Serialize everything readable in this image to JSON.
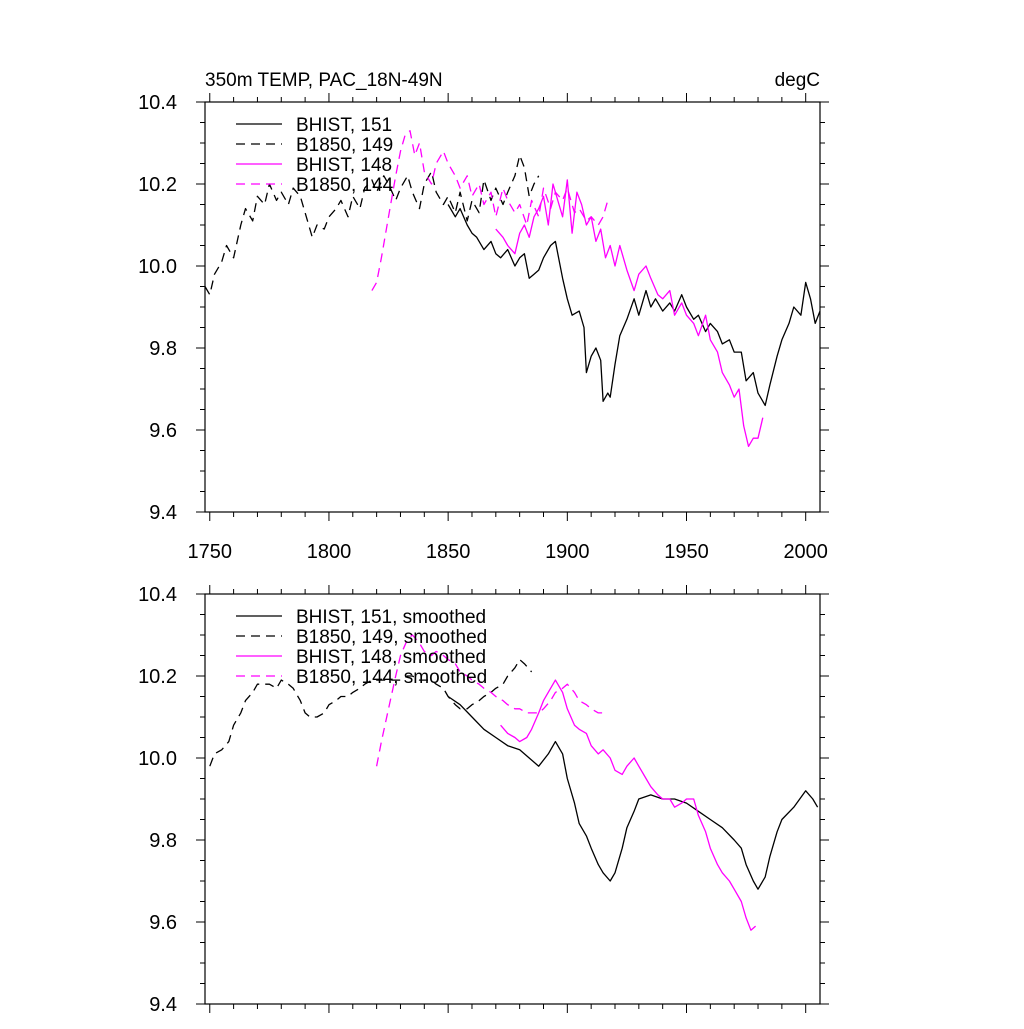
{
  "colors": {
    "black": "#000000",
    "magenta": "#ff00ff"
  },
  "chart_data": [
    {
      "type": "line",
      "title": "350m TEMP, PAC_18N-49N",
      "units": "degC",
      "xlim": [
        1748,
        2006
      ],
      "ylim": [
        9.4,
        10.4
      ],
      "xticks": [
        1750,
        1800,
        1850,
        1900,
        1950,
        2000
      ],
      "xtick_labels": [
        "1750",
        "1800",
        "1850",
        "1900",
        "1950",
        "2000"
      ],
      "yticks": [
        9.4,
        9.6,
        9.8,
        10.0,
        10.2,
        10.4
      ],
      "ytick_labels": [
        "9.4",
        "9.6",
        "9.8",
        "10.0",
        "10.2",
        "10.4"
      ],
      "grid": false,
      "legend": "top-left",
      "series": [
        {
          "name": "BHIST, 151",
          "color": "#000000",
          "dash": "solid",
          "x": [
            1850,
            1853,
            1855,
            1858,
            1860,
            1862,
            1865,
            1868,
            1870,
            1872,
            1875,
            1878,
            1880,
            1882,
            1884,
            1886,
            1888,
            1890,
            1893,
            1895,
            1898,
            1900,
            1902,
            1905,
            1907,
            1908,
            1910,
            1912,
            1914,
            1915,
            1917,
            1918,
            1920,
            1922,
            1925,
            1928,
            1930,
            1933,
            1935,
            1937,
            1940,
            1943,
            1945,
            1948,
            1950,
            1953,
            1955,
            1958,
            1960,
            1963,
            1965,
            1968,
            1970,
            1973,
            1975,
            1978,
            1980,
            1983,
            1985,
            1988,
            1990,
            1993,
            1995,
            1998,
            2000,
            2002,
            2004,
            2006
          ],
          "y": [
            10.15,
            10.12,
            10.14,
            10.1,
            10.08,
            10.07,
            10.04,
            10.06,
            10.03,
            10.02,
            10.04,
            10.0,
            10.02,
            10.03,
            9.97,
            9.98,
            9.99,
            10.02,
            10.05,
            10.06,
            9.97,
            9.92,
            9.88,
            9.89,
            9.85,
            9.74,
            9.78,
            9.8,
            9.77,
            9.67,
            9.69,
            9.68,
            9.76,
            9.83,
            9.87,
            9.92,
            9.88,
            9.94,
            9.9,
            9.92,
            9.89,
            9.91,
            9.89,
            9.93,
            9.9,
            9.87,
            9.88,
            9.84,
            9.86,
            9.84,
            9.81,
            9.82,
            9.79,
            9.79,
            9.72,
            9.74,
            9.69,
            9.66,
            9.71,
            9.78,
            9.82,
            9.86,
            9.9,
            9.88,
            9.96,
            9.92,
            9.86,
            9.89
          ]
        },
        {
          "name": "B1850, 149",
          "color": "#000000",
          "dash": "dashed",
          "x": [
            1748,
            1750,
            1752,
            1755,
            1757,
            1760,
            1763,
            1765,
            1768,
            1770,
            1773,
            1775,
            1778,
            1780,
            1783,
            1785,
            1788,
            1790,
            1793,
            1795,
            1798,
            1800,
            1803,
            1805,
            1808,
            1810,
            1813,
            1815,
            1818,
            1820,
            1823,
            1825,
            1828,
            1830,
            1833,
            1835,
            1838,
            1840,
            1843,
            1845,
            1848,
            1850,
            1853,
            1855,
            1858,
            1860,
            1863,
            1865,
            1868,
            1870,
            1873,
            1875,
            1878,
            1880,
            1882,
            1884,
            1886,
            1888
          ],
          "y": [
            9.95,
            9.93,
            9.98,
            10.01,
            10.05,
            10.02,
            10.1,
            10.14,
            10.11,
            10.17,
            10.15,
            10.2,
            10.16,
            10.18,
            10.15,
            10.19,
            10.17,
            10.13,
            10.07,
            10.1,
            10.09,
            10.12,
            10.14,
            10.16,
            10.12,
            10.17,
            10.14,
            10.19,
            10.21,
            10.18,
            10.22,
            10.2,
            10.16,
            10.19,
            10.22,
            10.18,
            10.14,
            10.2,
            10.23,
            10.18,
            10.15,
            10.17,
            10.13,
            10.18,
            10.11,
            10.16,
            10.13,
            10.21,
            10.16,
            10.19,
            10.15,
            10.18,
            10.22,
            10.27,
            10.24,
            10.17,
            10.2,
            10.22
          ]
        },
        {
          "name": "BHIST, 148",
          "color": "#ff00ff",
          "dash": "solid",
          "x": [
            1870,
            1873,
            1875,
            1878,
            1880,
            1882,
            1884,
            1886,
            1888,
            1890,
            1892,
            1894,
            1896,
            1898,
            1900,
            1902,
            1904,
            1906,
            1908,
            1910,
            1912,
            1914,
            1916,
            1918,
            1920,
            1922,
            1925,
            1928,
            1930,
            1933,
            1935,
            1938,
            1940,
            1943,
            1945,
            1948,
            1950,
            1953,
            1955,
            1958,
            1960,
            1963,
            1965,
            1968,
            1970,
            1972,
            1974,
            1976,
            1978,
            1980,
            1982
          ],
          "y": [
            10.09,
            10.07,
            10.05,
            10.03,
            10.08,
            10.1,
            10.07,
            10.12,
            10.14,
            10.17,
            10.1,
            10.2,
            10.16,
            10.12,
            10.21,
            10.08,
            10.18,
            10.15,
            10.1,
            10.12,
            10.06,
            10.09,
            10.02,
            10.05,
            10.0,
            10.05,
            9.99,
            9.94,
            9.98,
            10.0,
            9.97,
            9.93,
            9.92,
            9.94,
            9.88,
            9.91,
            9.88,
            9.86,
            9.83,
            9.88,
            9.82,
            9.79,
            9.74,
            9.71,
            9.68,
            9.7,
            9.61,
            9.56,
            9.58,
            9.58,
            9.63
          ]
        },
        {
          "name": "B1850, 144",
          "color": "#ff00ff",
          "dash": "dashed",
          "x": [
            1818,
            1820,
            1822,
            1825,
            1828,
            1830,
            1832,
            1834,
            1836,
            1838,
            1840,
            1843,
            1845,
            1848,
            1850,
            1853,
            1855,
            1858,
            1860,
            1863,
            1865,
            1868,
            1870,
            1873,
            1875,
            1878,
            1880,
            1883,
            1885,
            1888,
            1890,
            1893,
            1895,
            1898,
            1900,
            1903,
            1905,
            1908,
            1910,
            1913,
            1915,
            1917
          ],
          "y": [
            9.94,
            9.96,
            10.02,
            10.12,
            10.22,
            10.28,
            10.32,
            10.33,
            10.27,
            10.3,
            10.23,
            10.2,
            10.25,
            10.28,
            10.25,
            10.22,
            10.19,
            10.22,
            10.17,
            10.2,
            10.15,
            10.18,
            10.12,
            10.19,
            10.16,
            10.13,
            10.15,
            10.1,
            10.16,
            10.12,
            10.19,
            10.14,
            10.18,
            10.16,
            10.19,
            10.13,
            10.14,
            10.11,
            10.12,
            10.1,
            10.12,
            10.16
          ]
        }
      ]
    },
    {
      "type": "line",
      "title": "",
      "xlim": [
        1748,
        2006
      ],
      "ylim": [
        9.4,
        10.4
      ],
      "xticks": [
        1750,
        1800,
        1850,
        1900,
        1950,
        2000
      ],
      "yticks": [
        9.4,
        9.6,
        9.8,
        10.0,
        10.2,
        10.4
      ],
      "ytick_labels": [
        "9.4",
        "9.6",
        "9.8",
        "10.0",
        "10.2",
        "10.4"
      ],
      "grid": false,
      "legend": "top-left",
      "series": [
        {
          "name": "BHIST, 151, smoothed",
          "color": "#000000",
          "dash": "solid",
          "x": [
            1850,
            1855,
            1860,
            1865,
            1870,
            1875,
            1880,
            1884,
            1888,
            1892,
            1895,
            1898,
            1900,
            1903,
            1905,
            1908,
            1910,
            1913,
            1915,
            1918,
            1920,
            1923,
            1925,
            1928,
            1930,
            1935,
            1940,
            1945,
            1950,
            1955,
            1960,
            1965,
            1970,
            1973,
            1975,
            1978,
            1980,
            1983,
            1985,
            1988,
            1990,
            1995,
            2000,
            2003,
            2005
          ],
          "y": [
            10.15,
            10.13,
            10.1,
            10.07,
            10.05,
            10.03,
            10.02,
            10.0,
            9.98,
            10.01,
            10.04,
            10.01,
            9.95,
            9.89,
            9.84,
            9.81,
            9.78,
            9.74,
            9.72,
            9.7,
            9.72,
            9.78,
            9.83,
            9.87,
            9.9,
            9.91,
            9.9,
            9.9,
            9.89,
            9.87,
            9.85,
            9.83,
            9.8,
            9.78,
            9.74,
            9.7,
            9.68,
            9.71,
            9.76,
            9.82,
            9.85,
            9.88,
            9.92,
            9.9,
            9.88
          ]
        },
        {
          "name": "B1850, 149, smoothed",
          "color": "#000000",
          "dash": "dashed",
          "x": [
            1750,
            1752,
            1755,
            1758,
            1760,
            1763,
            1765,
            1768,
            1770,
            1773,
            1775,
            1778,
            1780,
            1783,
            1785,
            1788,
            1790,
            1792,
            1795,
            1798,
            1800,
            1803,
            1805,
            1808,
            1810,
            1813,
            1815,
            1818,
            1820,
            1823,
            1825,
            1828,
            1830,
            1833,
            1835,
            1838,
            1840,
            1843,
            1845,
            1848,
            1850,
            1853,
            1855,
            1858,
            1860,
            1863,
            1865,
            1868,
            1870,
            1873,
            1875,
            1878,
            1880,
            1882,
            1885
          ],
          "y": [
            9.98,
            10.01,
            10.02,
            10.04,
            10.08,
            10.11,
            10.14,
            10.16,
            10.18,
            10.18,
            10.18,
            10.17,
            10.19,
            10.18,
            10.17,
            10.14,
            10.11,
            10.1,
            10.1,
            10.11,
            10.13,
            10.14,
            10.15,
            10.15,
            10.16,
            10.17,
            10.18,
            10.19,
            10.19,
            10.19,
            10.19,
            10.19,
            10.19,
            10.2,
            10.2,
            10.19,
            10.19,
            10.19,
            10.18,
            10.17,
            10.15,
            10.13,
            10.12,
            10.12,
            10.13,
            10.14,
            10.15,
            10.16,
            10.17,
            10.18,
            10.2,
            10.22,
            10.24,
            10.23,
            10.21
          ]
        },
        {
          "name": "BHIST, 148, smoothed",
          "color": "#ff00ff",
          "dash": "solid",
          "x": [
            1872,
            1875,
            1878,
            1880,
            1883,
            1885,
            1888,
            1890,
            1893,
            1895,
            1898,
            1900,
            1903,
            1905,
            1908,
            1910,
            1913,
            1915,
            1918,
            1920,
            1923,
            1925,
            1928,
            1930,
            1933,
            1935,
            1938,
            1940,
            1943,
            1945,
            1948,
            1950,
            1953,
            1955,
            1958,
            1960,
            1963,
            1965,
            1968,
            1970,
            1973,
            1975,
            1977,
            1979
          ],
          "y": [
            10.08,
            10.06,
            10.05,
            10.04,
            10.05,
            10.07,
            10.11,
            10.14,
            10.17,
            10.19,
            10.16,
            10.12,
            10.08,
            10.07,
            10.06,
            10.03,
            10.01,
            10.02,
            10.0,
            9.97,
            9.96,
            9.98,
            10.0,
            9.98,
            9.95,
            9.93,
            9.91,
            9.9,
            9.9,
            9.88,
            9.89,
            9.9,
            9.9,
            9.86,
            9.82,
            9.78,
            9.74,
            9.72,
            9.7,
            9.68,
            9.65,
            9.61,
            9.58,
            9.59
          ]
        },
        {
          "name": "B1850, 144, smoothed",
          "color": "#ff00ff",
          "dash": "dashed",
          "x": [
            1820,
            1822,
            1825,
            1828,
            1830,
            1833,
            1835,
            1838,
            1840,
            1843,
            1845,
            1848,
            1850,
            1853,
            1855,
            1858,
            1860,
            1863,
            1865,
            1868,
            1870,
            1873,
            1875,
            1878,
            1880,
            1883,
            1885,
            1888,
            1890,
            1893,
            1895,
            1898,
            1900,
            1903,
            1905,
            1908,
            1910,
            1913,
            1915
          ],
          "y": [
            9.98,
            10.04,
            10.12,
            10.2,
            10.25,
            10.29,
            10.3,
            10.28,
            10.26,
            10.25,
            10.26,
            10.25,
            10.24,
            10.23,
            10.21,
            10.2,
            10.19,
            10.18,
            10.17,
            10.16,
            10.15,
            10.14,
            10.13,
            10.12,
            10.12,
            10.11,
            10.11,
            10.11,
            10.12,
            10.14,
            10.16,
            10.17,
            10.18,
            10.16,
            10.14,
            10.13,
            10.12,
            10.11,
            10.11
          ]
        }
      ]
    }
  ]
}
